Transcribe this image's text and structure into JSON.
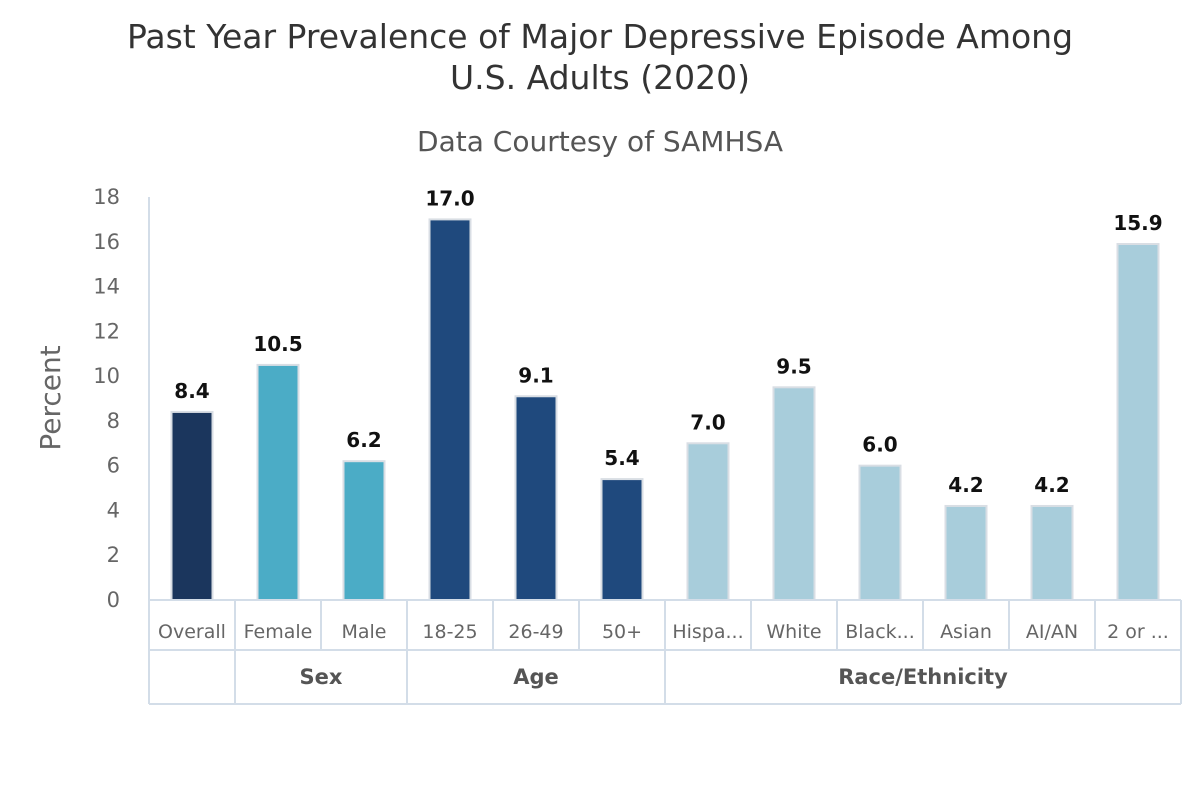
{
  "chart_data": {
    "type": "bar",
    "title": [
      "Past Year Prevalence of Major Depressive Episode Among",
      "U.S. Adults (2020)"
    ],
    "subtitle": "Data Courtesy of SAMHSA",
    "ylabel": "Percent",
    "xlabel": "",
    "ylim": [
      0,
      18
    ],
    "yticks": [
      0,
      2,
      4,
      6,
      8,
      10,
      12,
      14,
      16,
      18
    ],
    "grid": false,
    "categories": [
      "Overall",
      "Female",
      "Male",
      "18-25",
      "26-49",
      "50+",
      "Hispa...",
      "White",
      "Black...",
      "Asian",
      "AI/AN",
      "2 or ..."
    ],
    "values": [
      8.4,
      10.5,
      6.2,
      17.0,
      9.1,
      5.4,
      7.0,
      9.5,
      6.0,
      4.2,
      4.2,
      15.9
    ],
    "value_labels": [
      "8.4",
      "10.5",
      "6.2",
      "17.0",
      "9.1",
      "5.4",
      "7.0",
      "9.5",
      "6.0",
      "4.2",
      "4.2",
      "15.9"
    ],
    "bar_colors": [
      "#1b365d",
      "#4bacc6",
      "#4bacc6",
      "#1f497d",
      "#1f497d",
      "#1f497d",
      "#a8cddb",
      "#a8cddb",
      "#a8cddb",
      "#a8cddb",
      "#a8cddb",
      "#a8cddb"
    ],
    "groups": [
      {
        "label": "",
        "start": 0,
        "end": 0
      },
      {
        "label": "Sex",
        "start": 1,
        "end": 2
      },
      {
        "label": "Age",
        "start": 3,
        "end": 5
      },
      {
        "label": "Race/Ethnicity",
        "start": 6,
        "end": 11
      }
    ]
  }
}
